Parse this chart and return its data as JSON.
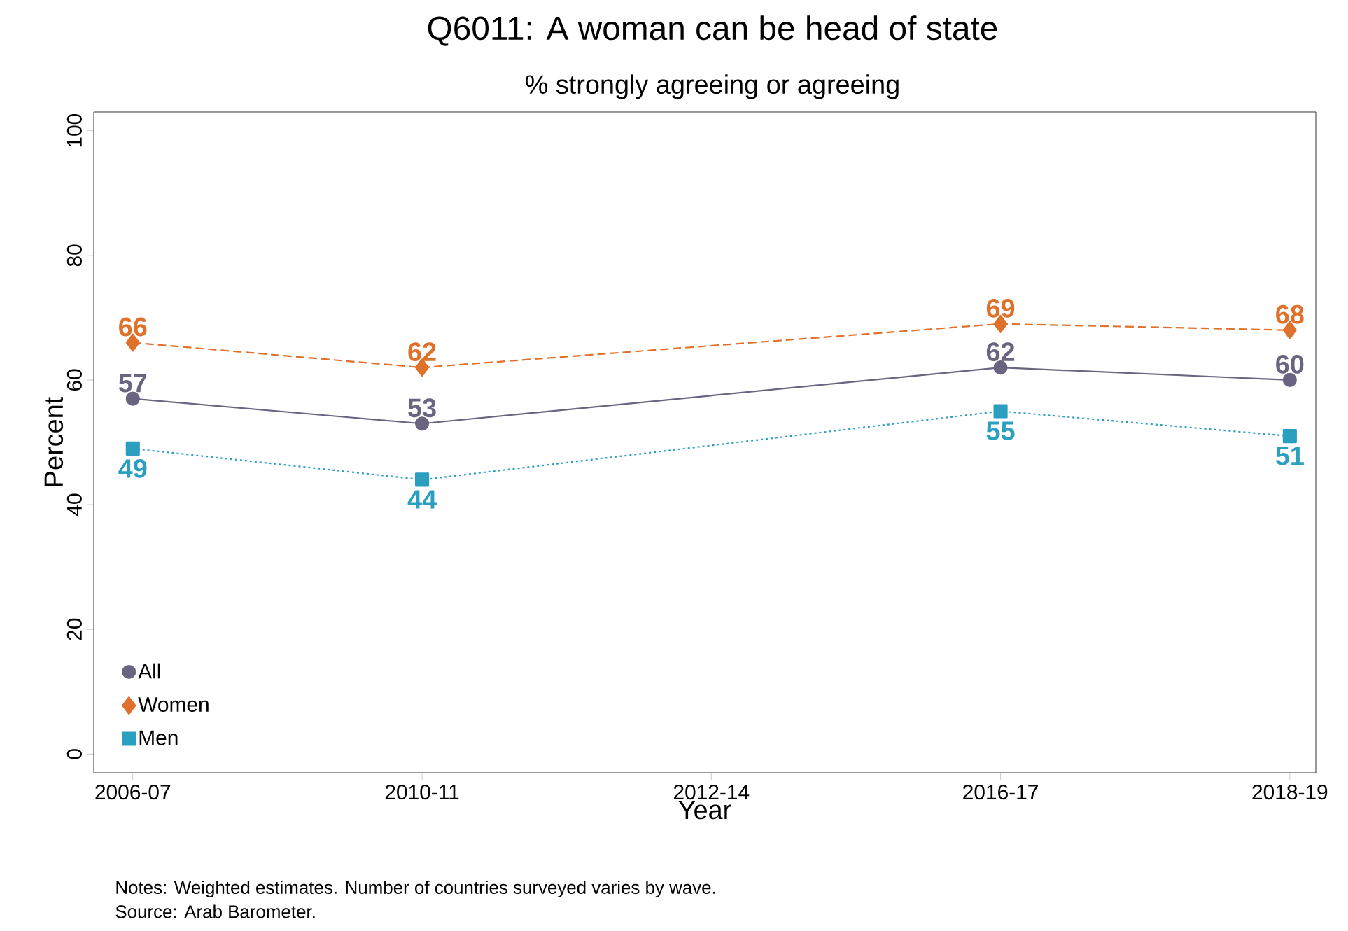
{
  "chart_data": {
    "type": "line",
    "title": "Q6011: A woman can be head of state",
    "subtitle": "% strongly agreeing or agreeing",
    "xlabel": "Year",
    "ylabel": "Percent",
    "categories": [
      "2006-07",
      "2010-11",
      "2012-14",
      "2016-17",
      "2018-19"
    ],
    "series": [
      {
        "name": "All",
        "color": "#6b6480",
        "values": [
          57,
          53,
          null,
          62,
          60
        ],
        "marker": "circle",
        "line_style": "solid"
      },
      {
        "name": "Women",
        "color": "#e0712a",
        "values": [
          66,
          62,
          null,
          69,
          68
        ],
        "marker": "diamond",
        "line_style": "dashed"
      },
      {
        "name": "Men",
        "color": "#2a9fc0",
        "values": [
          49,
          44,
          null,
          55,
          51
        ],
        "marker": "square",
        "line_style": "dotted"
      }
    ],
    "ylim": [
      -3,
      103
    ],
    "yticks": [
      0,
      20,
      40,
      60,
      80,
      100
    ],
    "grid": false,
    "legend": "bottom left",
    "data_labels": true,
    "annotations": [
      "Notes: Weighted estimates. Number of countries surveyed varies by wave.",
      "Source: Arab Barometer."
    ]
  }
}
